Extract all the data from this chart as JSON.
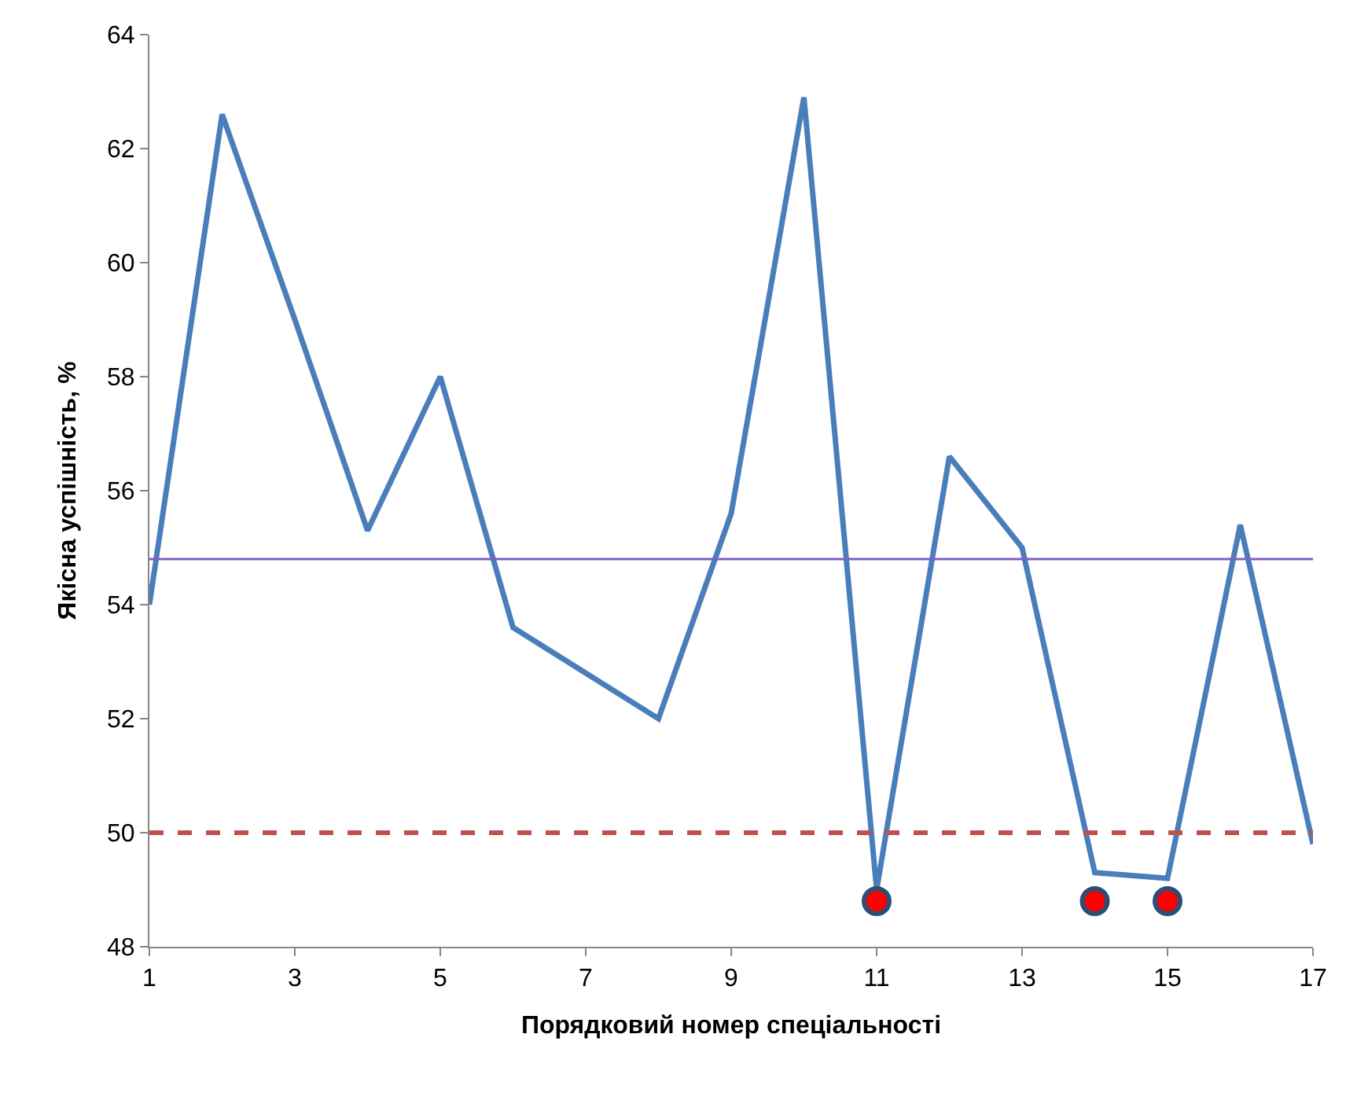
{
  "chart_data": {
    "type": "line",
    "xlabel": "Порядковий номер спеціальності",
    "ylabel": "Якісна успішність, %",
    "x": [
      1,
      2,
      3,
      4,
      5,
      6,
      7,
      8,
      9,
      10,
      11,
      12,
      13,
      14,
      15,
      16,
      17
    ],
    "series": [
      {
        "color": "#4a7ebb",
        "values": [
          54.0,
          62.6,
          59.0,
          55.3,
          58.0,
          53.6,
          52.8,
          52.0,
          55.6,
          62.9,
          49.0,
          56.6,
          55.0,
          49.3,
          49.2,
          55.4,
          49.8
        ],
        "marker": "none"
      },
      {
        "type": "scatter",
        "color": "#ff0000",
        "x": [
          11,
          14,
          15
        ],
        "values": [
          48.8,
          48.8,
          48.8
        ],
        "marker": "circle"
      }
    ],
    "xlim": [
      1,
      17
    ],
    "xticks": [
      1,
      3,
      5,
      7,
      9,
      11,
      13,
      15,
      17
    ],
    "ylim": [
      48,
      64
    ],
    "yticks": [
      48,
      50,
      52,
      54,
      56,
      58,
      60,
      62,
      64
    ],
    "ref_lines": [
      {
        "axis": "y",
        "value": 54.8,
        "color": "#7f5fbf",
        "line_style": "solid"
      },
      {
        "axis": "y",
        "value": 50,
        "color": "#c0504d",
        "line_style": "dashed"
      }
    ]
  }
}
